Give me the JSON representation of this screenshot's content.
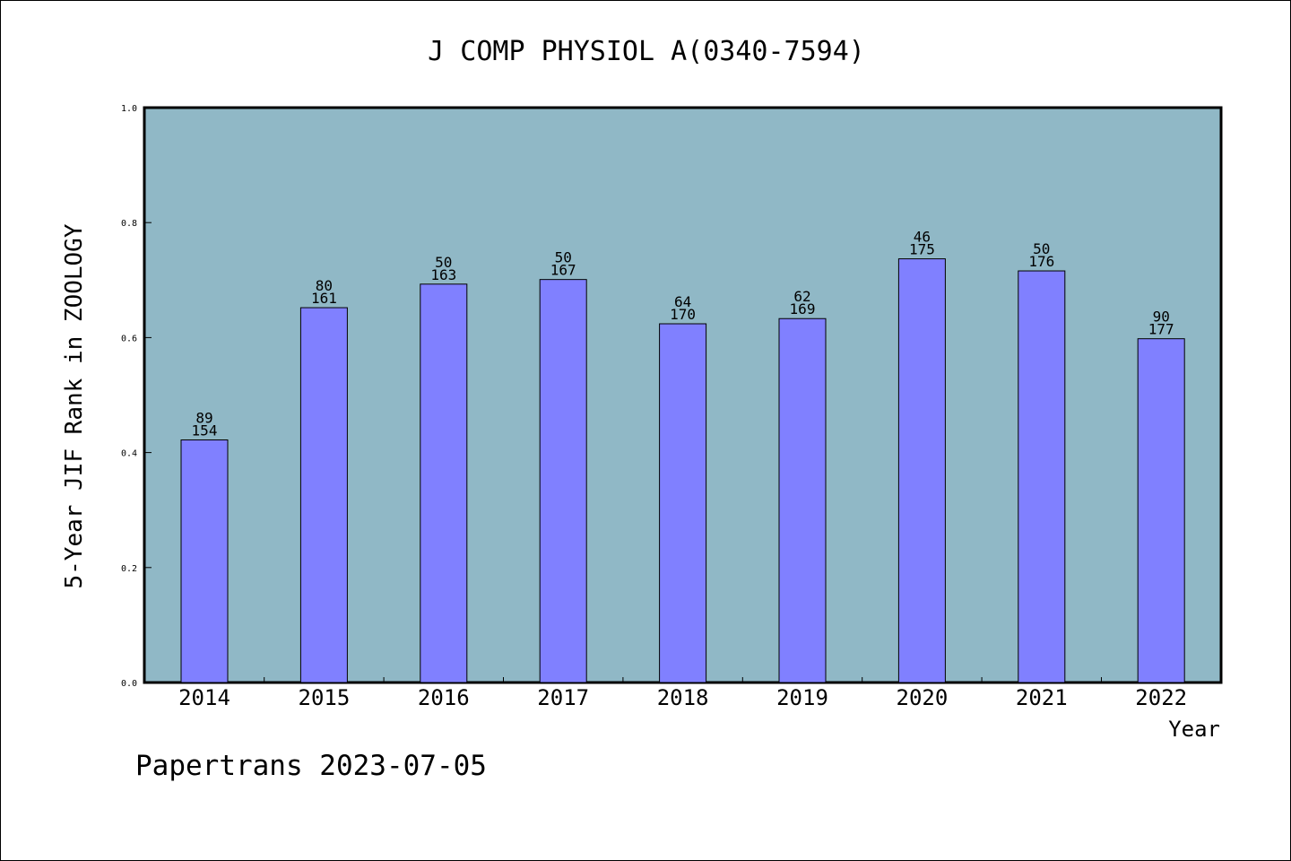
{
  "chart_data": {
    "type": "bar",
    "title": "J COMP PHYSIOL A(0340-7594)",
    "xlabel": "Year",
    "ylabel": "5-Year JIF Rank in ZOOLOGY",
    "ylim": [
      0,
      1.0
    ],
    "yticks": [
      "0.0",
      "0.2",
      "0.4",
      "0.6",
      "0.8",
      "1.0"
    ],
    "categories": [
      "2014",
      "2015",
      "2016",
      "2017",
      "2018",
      "2019",
      "2020",
      "2021",
      "2022"
    ],
    "values": [
      0.422,
      0.652,
      0.693,
      0.701,
      0.624,
      0.633,
      0.737,
      0.716,
      0.598
    ],
    "rank_labels": [
      "89",
      "80",
      "50",
      "50",
      "64",
      "62",
      "46",
      "50",
      "90"
    ],
    "total_labels": [
      "154",
      "161",
      "163",
      "167",
      "170",
      "169",
      "175",
      "176",
      "177"
    ],
    "grid": false,
    "legend": "none",
    "colors": {
      "plot_background": "#90b8c6",
      "bar_fill": "#8080ff",
      "bar_stroke": "#000000",
      "axis": "#000000"
    }
  },
  "footer": {
    "credit": "Papertrans 2023-07-05"
  }
}
